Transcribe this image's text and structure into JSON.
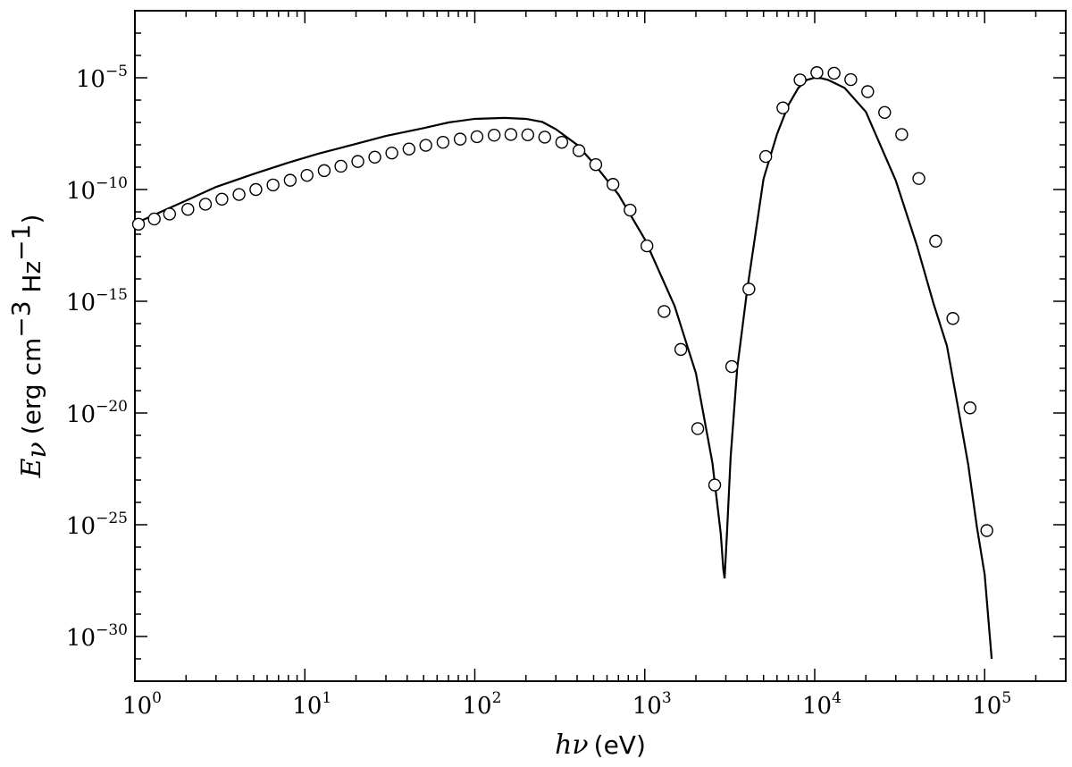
{
  "chart_data": {
    "type": "line",
    "title": "",
    "x_scale": "log",
    "y_scale": "log",
    "xlim": [
      1,
      300000
    ],
    "ylim": [
      1e-32,
      0.01
    ],
    "grid": false,
    "legend": "none",
    "xlabel": {
      "var": "hν",
      "unit": "(eV)"
    },
    "ylabel": {
      "var": "E",
      "sub": "ν",
      "unit_open": "(erg cm",
      "unit_exp1": "−3",
      "unit_mid": " Hz",
      "unit_exp2": "−1",
      "unit_close": ")"
    },
    "x_ticks": [
      {
        "value": 1,
        "base": "10",
        "exp": "0"
      },
      {
        "value": 10,
        "base": "10",
        "exp": "1"
      },
      {
        "value": 100,
        "base": "10",
        "exp": "2"
      },
      {
        "value": 1000,
        "base": "10",
        "exp": "3"
      },
      {
        "value": 10000,
        "base": "10",
        "exp": "4"
      },
      {
        "value": 100000,
        "base": "10",
        "exp": "5"
      }
    ],
    "y_ticks": [
      {
        "value": 1e-05,
        "base": "10",
        "exp": "−5"
      },
      {
        "value": 1e-10,
        "base": "10",
        "exp": "−10"
      },
      {
        "value": 1e-15,
        "base": "10",
        "exp": "−15"
      },
      {
        "value": 1e-20,
        "base": "10",
        "exp": "−20"
      },
      {
        "value": 1e-25,
        "base": "10",
        "exp": "−25"
      },
      {
        "value": 1e-30,
        "base": "10",
        "exp": "−30"
      }
    ],
    "series": [
      {
        "style": "solid-black-line",
        "x": [
          1,
          1.5,
          2,
          3,
          5,
          8,
          12,
          20,
          30,
          50,
          70,
          100,
          150,
          200,
          250,
          300,
          400,
          500,
          700,
          1000,
          1500,
          2000,
          2500,
          2800,
          2900,
          2950,
          3050,
          3200,
          3500,
          4000,
          5000,
          6000,
          7000,
          8000,
          9000,
          10000,
          11000,
          12000,
          15000,
          20000,
          30000,
          40000,
          50000,
          60000,
          70000,
          80000,
          90000,
          100000,
          110000
        ],
        "y": [
          3e-12,
          1.2e-11,
          3.2e-11,
          1.3e-10,
          5e-10,
          1.6e-09,
          4e-09,
          1.1e-08,
          2.5e-08,
          5.6e-08,
          1e-07,
          1.45e-07,
          1.6e-07,
          1.45e-07,
          1.05e-07,
          5e-08,
          1e-08,
          1.5e-09,
          6e-11,
          6e-13,
          6e-16,
          6e-19,
          6e-23,
          4e-26,
          1e-27,
          4e-28,
          5e-26,
          1e-22,
          1e-18,
          3e-15,
          3e-10,
          3e-08,
          6e-07,
          3.5e-06,
          8e-06,
          1e-05,
          9.5e-06,
          8e-06,
          3.5e-06,
          3e-07,
          2.5e-10,
          3e-13,
          8e-16,
          1e-17,
          1.5e-20,
          5e-23,
          8e-26,
          6e-28,
          1e-31
        ]
      },
      {
        "style": "open-circle-markers",
        "x": [
          1.05,
          1.3,
          1.6,
          2.05,
          2.6,
          3.25,
          4.1,
          5.15,
          6.5,
          8.2,
          10.3,
          13,
          16.3,
          20.5,
          25.8,
          32.5,
          41,
          51.5,
          65,
          82,
          103,
          130,
          163,
          205,
          258,
          325,
          410,
          515,
          650,
          820,
          1030,
          1300,
          1630,
          2050,
          2580,
          3250,
          4100,
          5150,
          6500,
          8200,
          10300,
          13000,
          16300,
          20500,
          25800,
          32500,
          41000,
          51500,
          65000,
          82000,
          103000
        ],
        "y": [
          2.8e-12,
          4.8e-12,
          8e-12,
          1.3e-11,
          2.2e-11,
          3.7e-11,
          6e-11,
          1e-10,
          1.6e-10,
          2.6e-10,
          4.3e-10,
          7e-10,
          1.1e-09,
          1.8e-09,
          2.8e-09,
          4.3e-09,
          6.5e-09,
          9.5e-09,
          1.3e-08,
          1.8e-08,
          2.3e-08,
          2.7e-08,
          2.9e-08,
          2.8e-08,
          2.2e-08,
          1.3e-08,
          5.5e-09,
          1.3e-09,
          1.7e-10,
          1.2e-11,
          3e-13,
          3.5e-16,
          7e-18,
          2e-21,
          6e-24,
          1.2e-18,
          3.5e-15,
          3e-09,
          4.5e-07,
          8e-06,
          1.7e-05,
          1.6e-05,
          8.3e-06,
          2.4e-06,
          2.8e-07,
          2.9e-08,
          3.1e-10,
          4.9e-13,
          1.7e-16,
          1.7e-20,
          5.5e-26
        ]
      }
    ]
  }
}
